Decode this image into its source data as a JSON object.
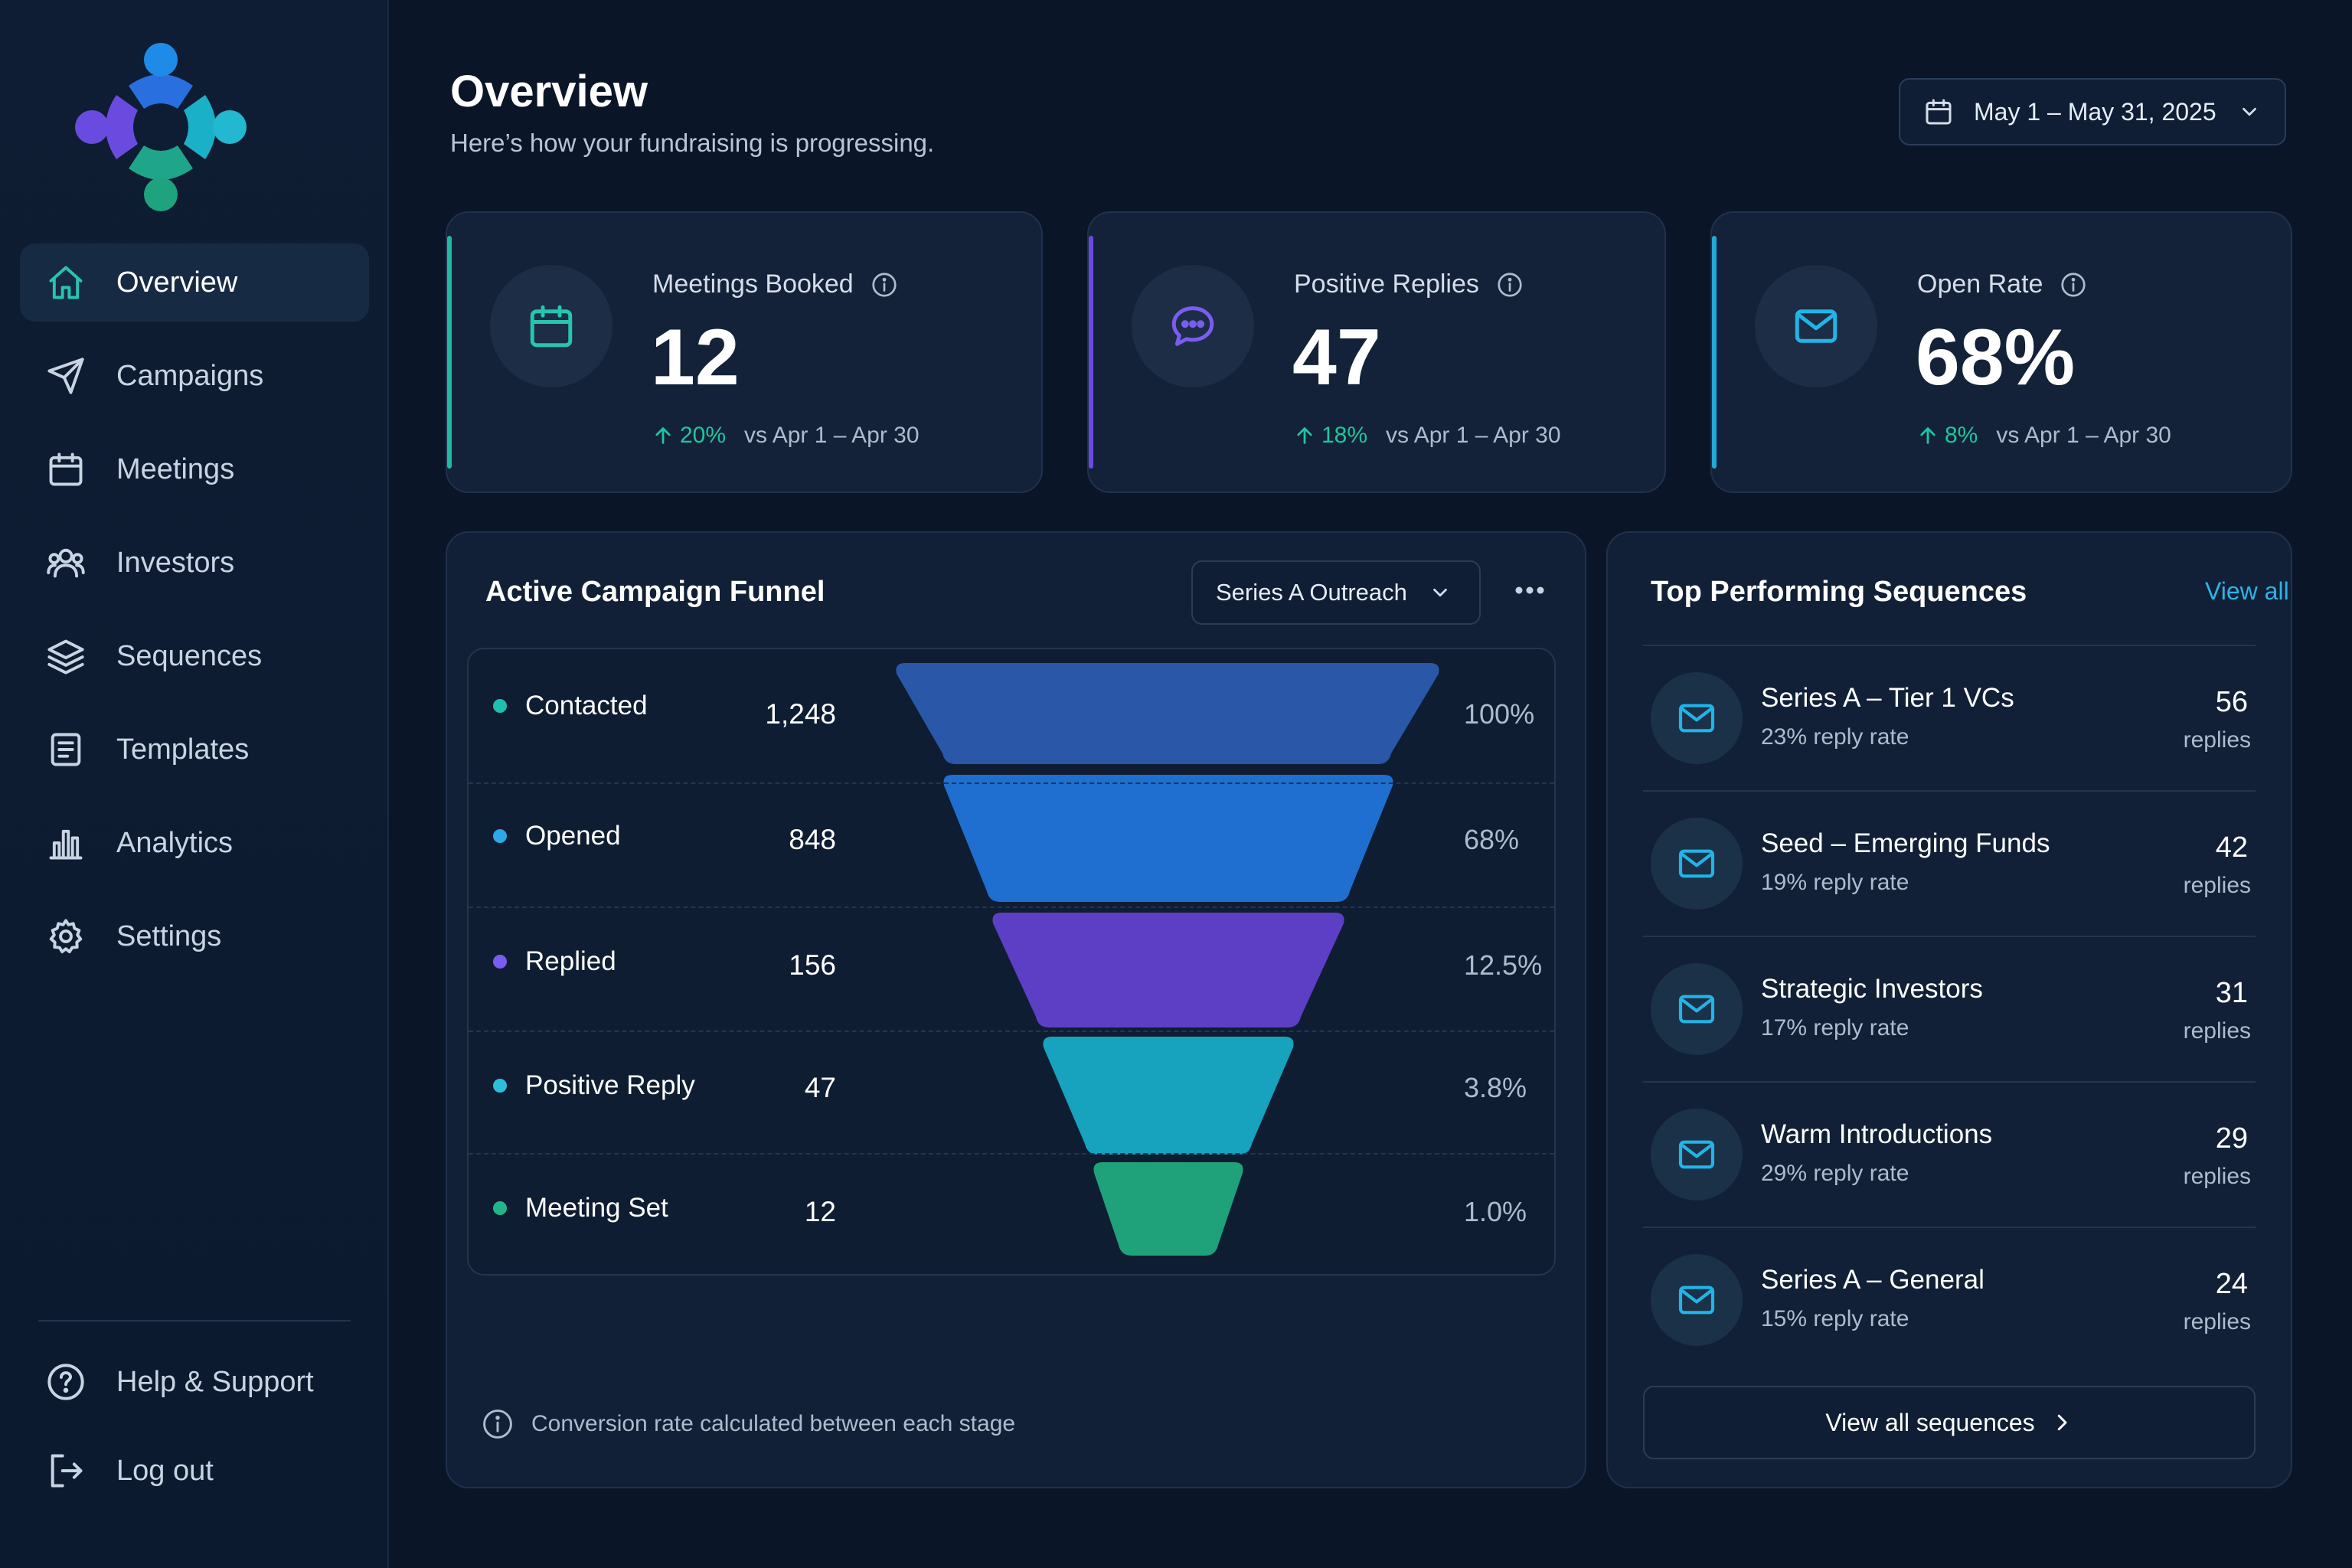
{
  "colors": {
    "teal": "#27c4b0",
    "violet": "#6a4be0",
    "cyan": "#22a9d8",
    "positive": "#1fc5a0",
    "link": "#2eb3e8"
  },
  "sidebar": {
    "logo_icon": "team-logo-icon",
    "items": [
      {
        "label": "Overview",
        "icon": "home-icon",
        "active": true
      },
      {
        "label": "Campaigns",
        "icon": "paper-plane-icon"
      },
      {
        "label": "Meetings",
        "icon": "calendar-icon"
      },
      {
        "label": "Investors",
        "icon": "users-icon"
      },
      {
        "label": "Sequences",
        "icon": "layers-icon"
      },
      {
        "label": "Templates",
        "icon": "document-icon"
      },
      {
        "label": "Analytics",
        "icon": "bar-chart-icon"
      },
      {
        "label": "Settings",
        "icon": "gear-icon"
      }
    ],
    "bottom": [
      {
        "label": "Help & Support",
        "icon": "help-circle-icon"
      },
      {
        "label": "Log out",
        "icon": "logout-icon"
      }
    ]
  },
  "header": {
    "title": "Overview",
    "subtitle": "Here’s how your fundraising is progressing.",
    "date_range": "May 1 – May 31, 2025"
  },
  "kpis": [
    {
      "label": "Meetings Booked",
      "value": "12",
      "delta": "20%",
      "compare": "vs Apr 1 – Apr 30",
      "icon": "calendar-icon"
    },
    {
      "label": "Positive Replies",
      "value": "47",
      "delta": "18%",
      "compare": "vs Apr 1 – Apr 30",
      "icon": "chat-bubble-icon"
    },
    {
      "label": "Open Rate",
      "value": "68%",
      "delta": "8%",
      "compare": "vs Apr 1 – Apr 30",
      "icon": "mail-icon"
    }
  ],
  "funnel": {
    "title": "Active Campaign Funnel",
    "campaign_select": "Series A Outreach",
    "stages": [
      {
        "name": "Contacted",
        "count": "1,248",
        "pct": "100%",
        "color": "#2a57a8",
        "dot": "#1fbfb0"
      },
      {
        "name": "Opened",
        "count": "848",
        "pct": "68%",
        "color": "#1f6fd0",
        "dot": "#2ea8e6"
      },
      {
        "name": "Replied",
        "count": "156",
        "pct": "12.5%",
        "color": "#5d3fc6",
        "dot": "#7b5cf0"
      },
      {
        "name": "Positive Reply",
        "count": "47",
        "pct": "3.8%",
        "color": "#17a2be",
        "dot": "#2bbfdc"
      },
      {
        "name": "Meeting Set",
        "count": "12",
        "pct": "1.0%",
        "color": "#1fa27a",
        "dot": "#22b58a"
      }
    ],
    "note": "Conversion rate calculated between each stage"
  },
  "sequences": {
    "title": "Top Performing Sequences",
    "view_all": "View all",
    "items": [
      {
        "name": "Series A – Tier 1 VCs",
        "rate": "23% reply rate",
        "replies": "56",
        "unit": "replies"
      },
      {
        "name": "Seed – Emerging Funds",
        "rate": "19% reply rate",
        "replies": "42",
        "unit": "replies"
      },
      {
        "name": "Strategic Investors",
        "rate": "17% reply rate",
        "replies": "31",
        "unit": "replies"
      },
      {
        "name": "Warm Introductions",
        "rate": "29% reply rate",
        "replies": "29",
        "unit": "replies"
      },
      {
        "name": "Series A – General",
        "rate": "15% reply rate",
        "replies": "24",
        "unit": "replies"
      }
    ],
    "button": "View all sequences"
  }
}
